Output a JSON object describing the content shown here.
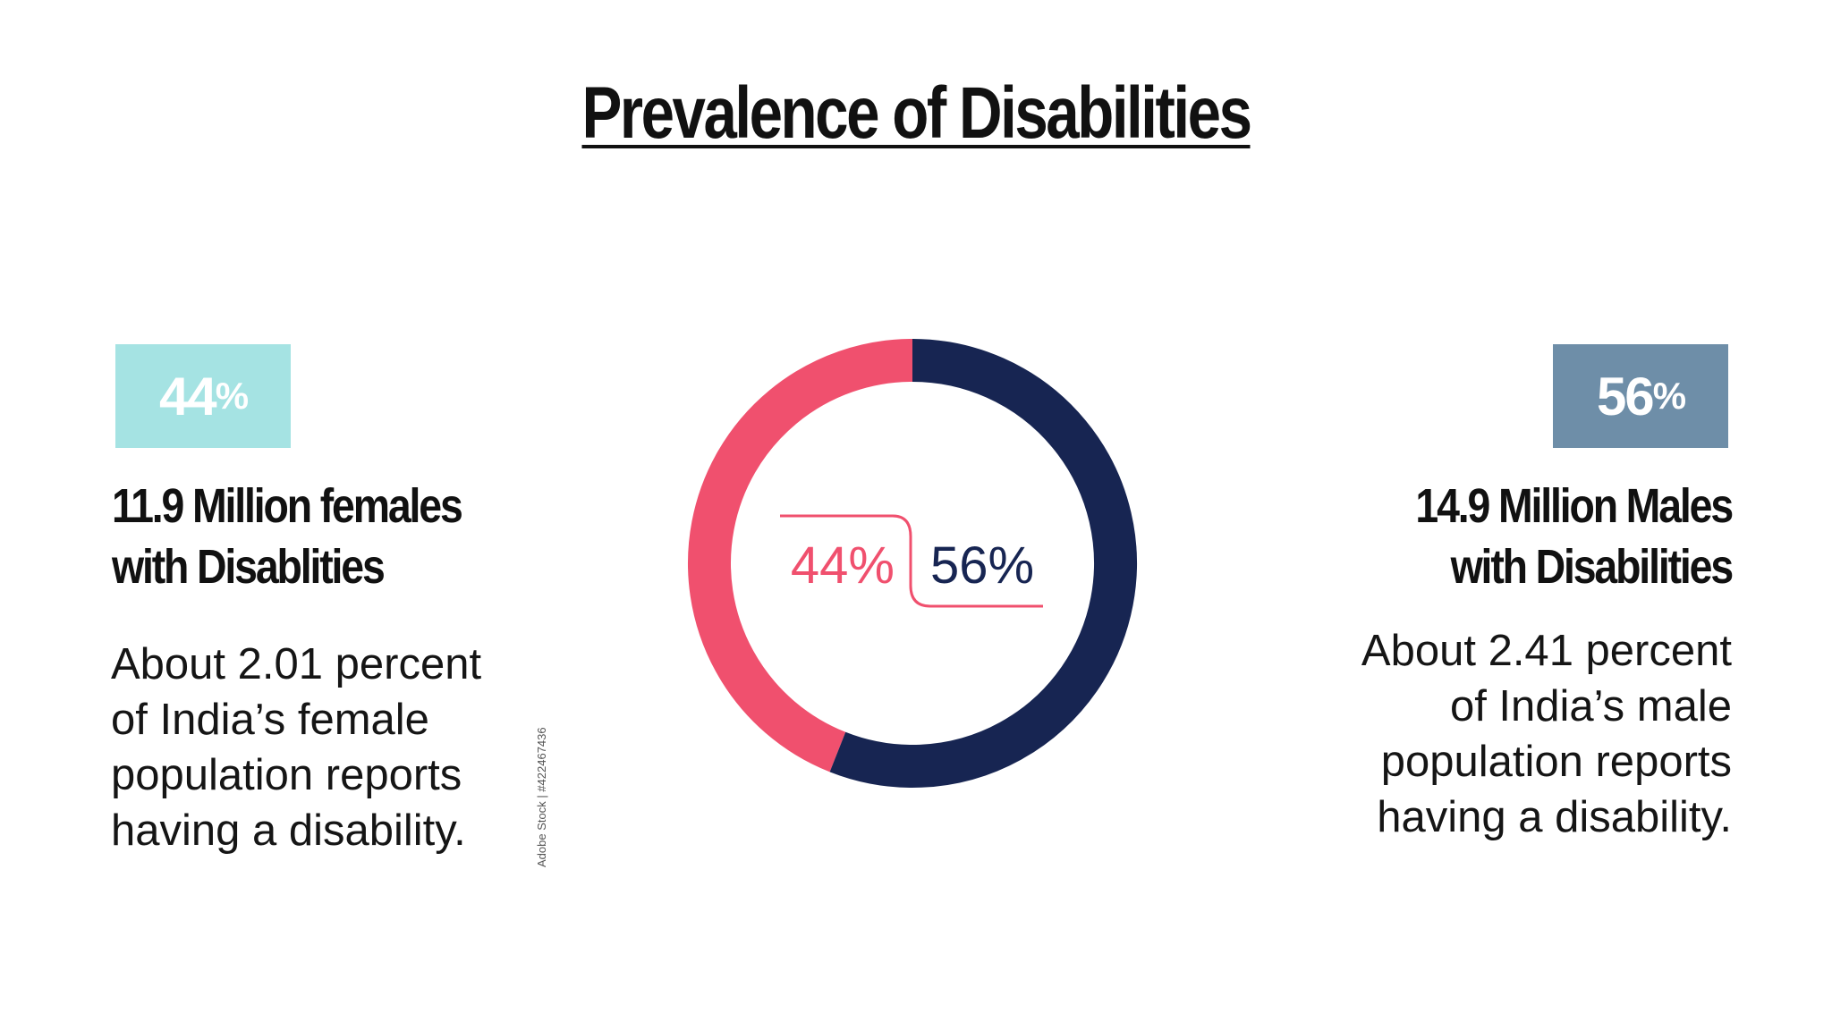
{
  "title": "Prevalence of Disabilities",
  "female": {
    "badge_value": "44",
    "badge_suffix": "%",
    "headline_line1": "11.9 Million females",
    "headline_line2": "with Disablities",
    "desc_line1": "About 2.01 percent",
    "desc_line2": "of India’s female",
    "desc_line3": "population reports",
    "desc_line4": "having a disability.",
    "color": "#a5e3e3"
  },
  "male": {
    "badge_value": "56",
    "badge_suffix": "%",
    "headline_line1": "14.9 Million Males",
    "headline_line2": "with Disabilities",
    "desc_line1": "About 2.41 percent",
    "desc_line2": "of India’s male",
    "desc_line3": "population reports",
    "desc_line4": "having a disability.",
    "color": "#6e8ea8"
  },
  "watermark": "Adobe Stock | #422467436",
  "chart_data": {
    "type": "pie",
    "donut": true,
    "categories": [
      "",
      ""
    ],
    "values": [
      44,
      56
    ],
    "labels": [
      "44%",
      "56%"
    ],
    "colors": [
      "#f0506e",
      "#172552"
    ]
  }
}
